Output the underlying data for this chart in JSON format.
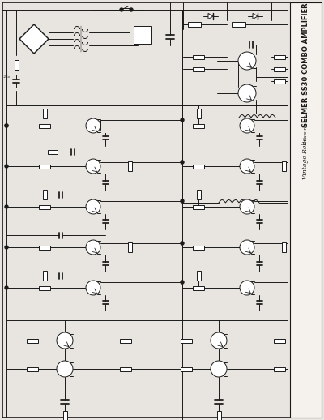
{
  "title": "SELMER SS30 COMBO AMPLIFIER",
  "subtitle_line1": "Drawing by",
  "subtitle_line2": "Vintage Relic",
  "bg_color": "#e8e5e0",
  "line_color": "#1a1a1a",
  "figsize": [
    4.0,
    5.18
  ],
  "dpi": 100,
  "title_fontsize": 6.0,
  "subtitle_fontsize": 4.5,
  "italic_fontsize": 5.5,
  "lw": 0.7
}
